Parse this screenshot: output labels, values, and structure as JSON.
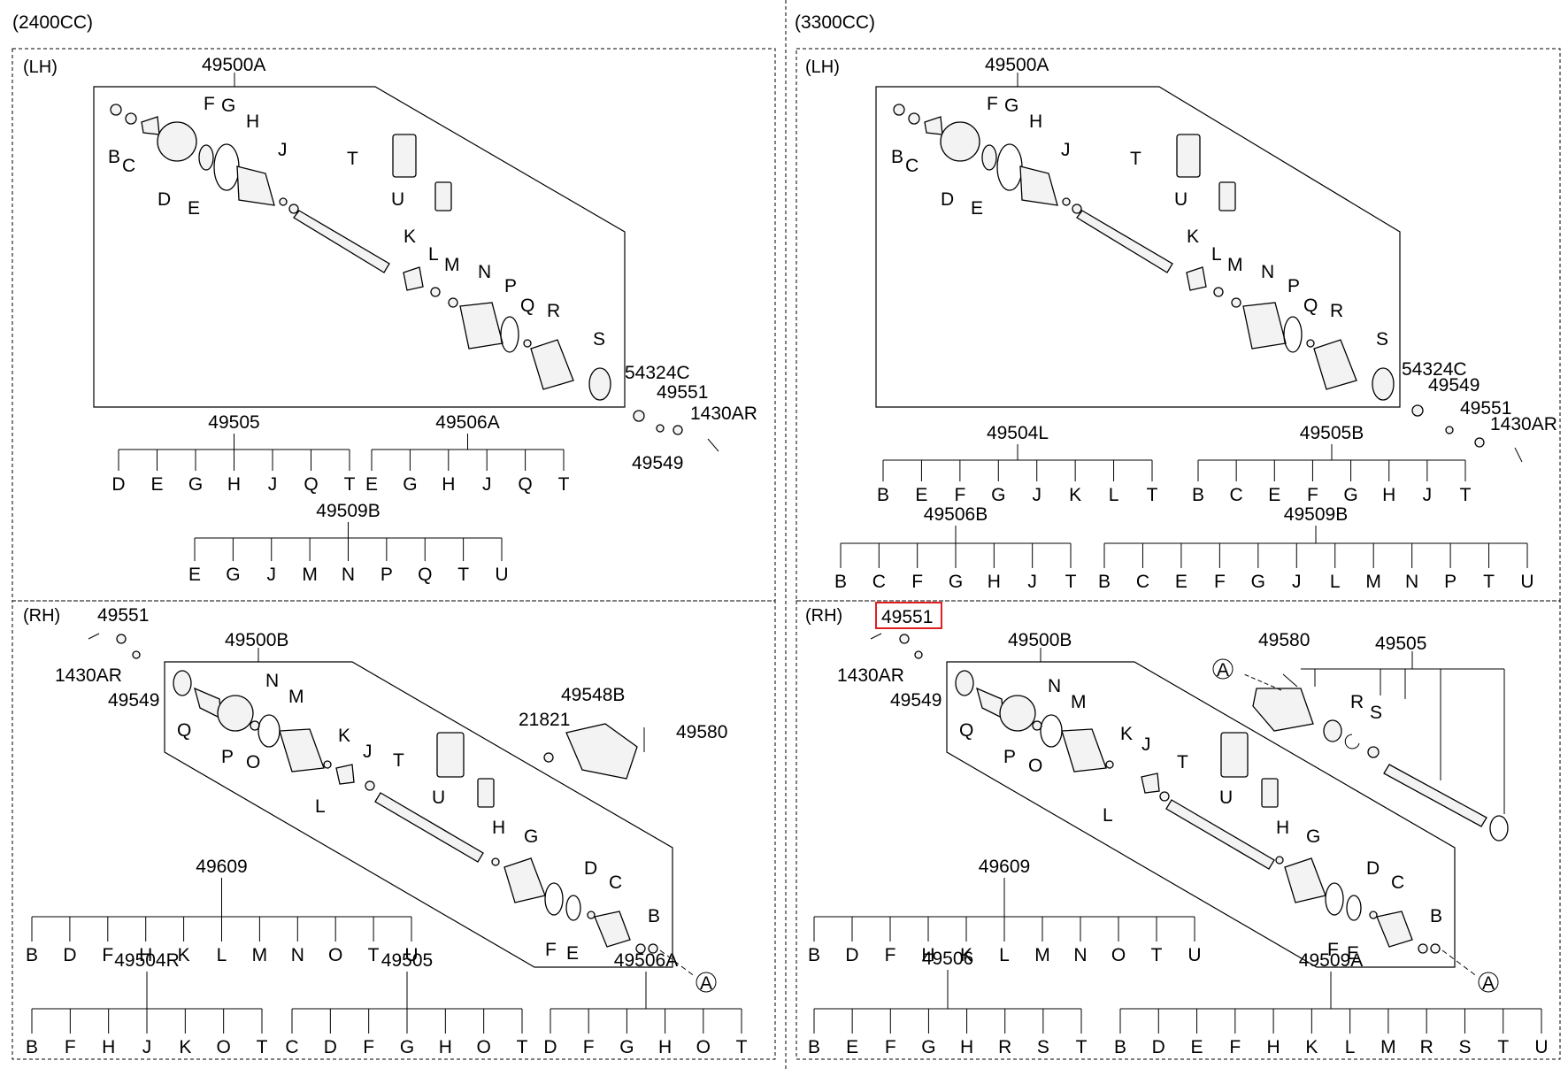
{
  "columns": [
    {
      "header": "(2400CC)"
    },
    {
      "header": "(3300CC)"
    }
  ],
  "highlight": {
    "label": "49551",
    "color": "#e02020"
  },
  "colors": {
    "ink": "#000000",
    "background": "#ffffff"
  },
  "panels": [
    {
      "id": "lh-2400",
      "side": "(LH)",
      "assembly": "49500A",
      "labels": [
        {
          "t": "B"
        },
        {
          "t": "C"
        },
        {
          "t": "D"
        },
        {
          "t": "E"
        },
        {
          "t": "F"
        },
        {
          "t": "G"
        },
        {
          "t": "H"
        },
        {
          "t": "J"
        },
        {
          "t": "K"
        },
        {
          "t": "L"
        },
        {
          "t": "M"
        },
        {
          "t": "N"
        },
        {
          "t": "P"
        },
        {
          "t": "Q"
        },
        {
          "t": "R"
        },
        {
          "t": "S"
        },
        {
          "t": "T"
        },
        {
          "t": "U"
        },
        {
          "t": "54324C"
        },
        {
          "t": "49551"
        },
        {
          "t": "1430AR"
        },
        {
          "t": "49549"
        }
      ],
      "trees": [
        {
          "code": "49505",
          "items": [
            "D",
            "E",
            "G",
            "H",
            "J",
            "Q",
            "T"
          ]
        },
        {
          "code": "49506A",
          "items": [
            "E",
            "G",
            "H",
            "J",
            "Q",
            "T"
          ]
        },
        {
          "code": "49509B",
          "items": [
            "E",
            "G",
            "J",
            "M",
            "N",
            "P",
            "Q",
            "T",
            "U"
          ]
        }
      ]
    },
    {
      "id": "lh-3300",
      "side": "(LH)",
      "assembly": "49500A",
      "labels": [
        {
          "t": "B"
        },
        {
          "t": "C"
        },
        {
          "t": "D"
        },
        {
          "t": "E"
        },
        {
          "t": "F"
        },
        {
          "t": "G"
        },
        {
          "t": "H"
        },
        {
          "t": "J"
        },
        {
          "t": "K"
        },
        {
          "t": "L"
        },
        {
          "t": "M"
        },
        {
          "t": "N"
        },
        {
          "t": "P"
        },
        {
          "t": "Q"
        },
        {
          "t": "R"
        },
        {
          "t": "S"
        },
        {
          "t": "T"
        },
        {
          "t": "U"
        },
        {
          "t": "54324C"
        },
        {
          "t": "49549"
        },
        {
          "t": "49551"
        },
        {
          "t": "1430AR"
        }
      ],
      "trees": [
        {
          "code": "49504L",
          "items": [
            "B",
            "E",
            "F",
            "G",
            "J",
            "K",
            "L",
            "T"
          ]
        },
        {
          "code": "49505B",
          "items": [
            "B",
            "C",
            "E",
            "F",
            "G",
            "H",
            "J",
            "T"
          ]
        },
        {
          "code": "49506B",
          "items": [
            "B",
            "C",
            "F",
            "G",
            "H",
            "J",
            "T"
          ]
        },
        {
          "code": "49509B",
          "items": [
            "B",
            "C",
            "E",
            "F",
            "G",
            "J",
            "L",
            "M",
            "N",
            "P",
            "T",
            "U"
          ]
        }
      ]
    },
    {
      "id": "rh-2400",
      "side": "(RH)",
      "assembly": "49500B",
      "labels": [
        {
          "t": "49551"
        },
        {
          "t": "1430AR"
        },
        {
          "t": "49549"
        },
        {
          "t": "Q"
        },
        {
          "t": "P"
        },
        {
          "t": "O"
        },
        {
          "t": "N"
        },
        {
          "t": "M"
        },
        {
          "t": "L"
        },
        {
          "t": "K"
        },
        {
          "t": "J"
        },
        {
          "t": "T"
        },
        {
          "t": "U"
        },
        {
          "t": "21821"
        },
        {
          "t": "49548B"
        },
        {
          "t": "49580"
        },
        {
          "t": "H"
        },
        {
          "t": "G"
        },
        {
          "t": "F"
        },
        {
          "t": "E"
        },
        {
          "t": "D"
        },
        {
          "t": "C"
        },
        {
          "t": "B"
        },
        {
          "t": "A"
        }
      ],
      "trees": [
        {
          "code": "49609",
          "items": [
            "B",
            "D",
            "F",
            "H",
            "K",
            "L",
            "M",
            "N",
            "O",
            "T",
            "U"
          ]
        },
        {
          "code": "49504R",
          "items": [
            "B",
            "F",
            "H",
            "J",
            "K",
            "O",
            "T"
          ]
        },
        {
          "code": "49505",
          "items": [
            "C",
            "D",
            "F",
            "G",
            "H",
            "O",
            "T"
          ]
        },
        {
          "code": "49506A",
          "items": [
            "D",
            "F",
            "G",
            "H",
            "O",
            "T"
          ]
        }
      ]
    },
    {
      "id": "rh-3300",
      "side": "(RH)",
      "assembly": "49500B",
      "labels": [
        {
          "t": "49551"
        },
        {
          "t": "1430AR"
        },
        {
          "t": "49549"
        },
        {
          "t": "Q"
        },
        {
          "t": "P"
        },
        {
          "t": "O"
        },
        {
          "t": "N"
        },
        {
          "t": "M"
        },
        {
          "t": "L"
        },
        {
          "t": "K"
        },
        {
          "t": "J"
        },
        {
          "t": "T"
        },
        {
          "t": "U"
        },
        {
          "t": "49580"
        },
        {
          "t": "49505"
        },
        {
          "t": "R"
        },
        {
          "t": "S"
        },
        {
          "t": "A"
        },
        {
          "t": "H"
        },
        {
          "t": "G"
        },
        {
          "t": "F"
        },
        {
          "t": "E"
        },
        {
          "t": "D"
        },
        {
          "t": "C"
        },
        {
          "t": "B"
        },
        {
          "t": "A"
        }
      ],
      "trees": [
        {
          "code": "49609",
          "items": [
            "B",
            "D",
            "F",
            "H",
            "K",
            "L",
            "M",
            "N",
            "O",
            "T",
            "U"
          ]
        },
        {
          "code": "49506",
          "items": [
            "B",
            "E",
            "F",
            "G",
            "H",
            "R",
            "S",
            "T"
          ]
        },
        {
          "code": "49509A",
          "items": [
            "B",
            "D",
            "E",
            "F",
            "H",
            "K",
            "L",
            "M",
            "R",
            "S",
            "T",
            "U"
          ]
        }
      ]
    }
  ]
}
